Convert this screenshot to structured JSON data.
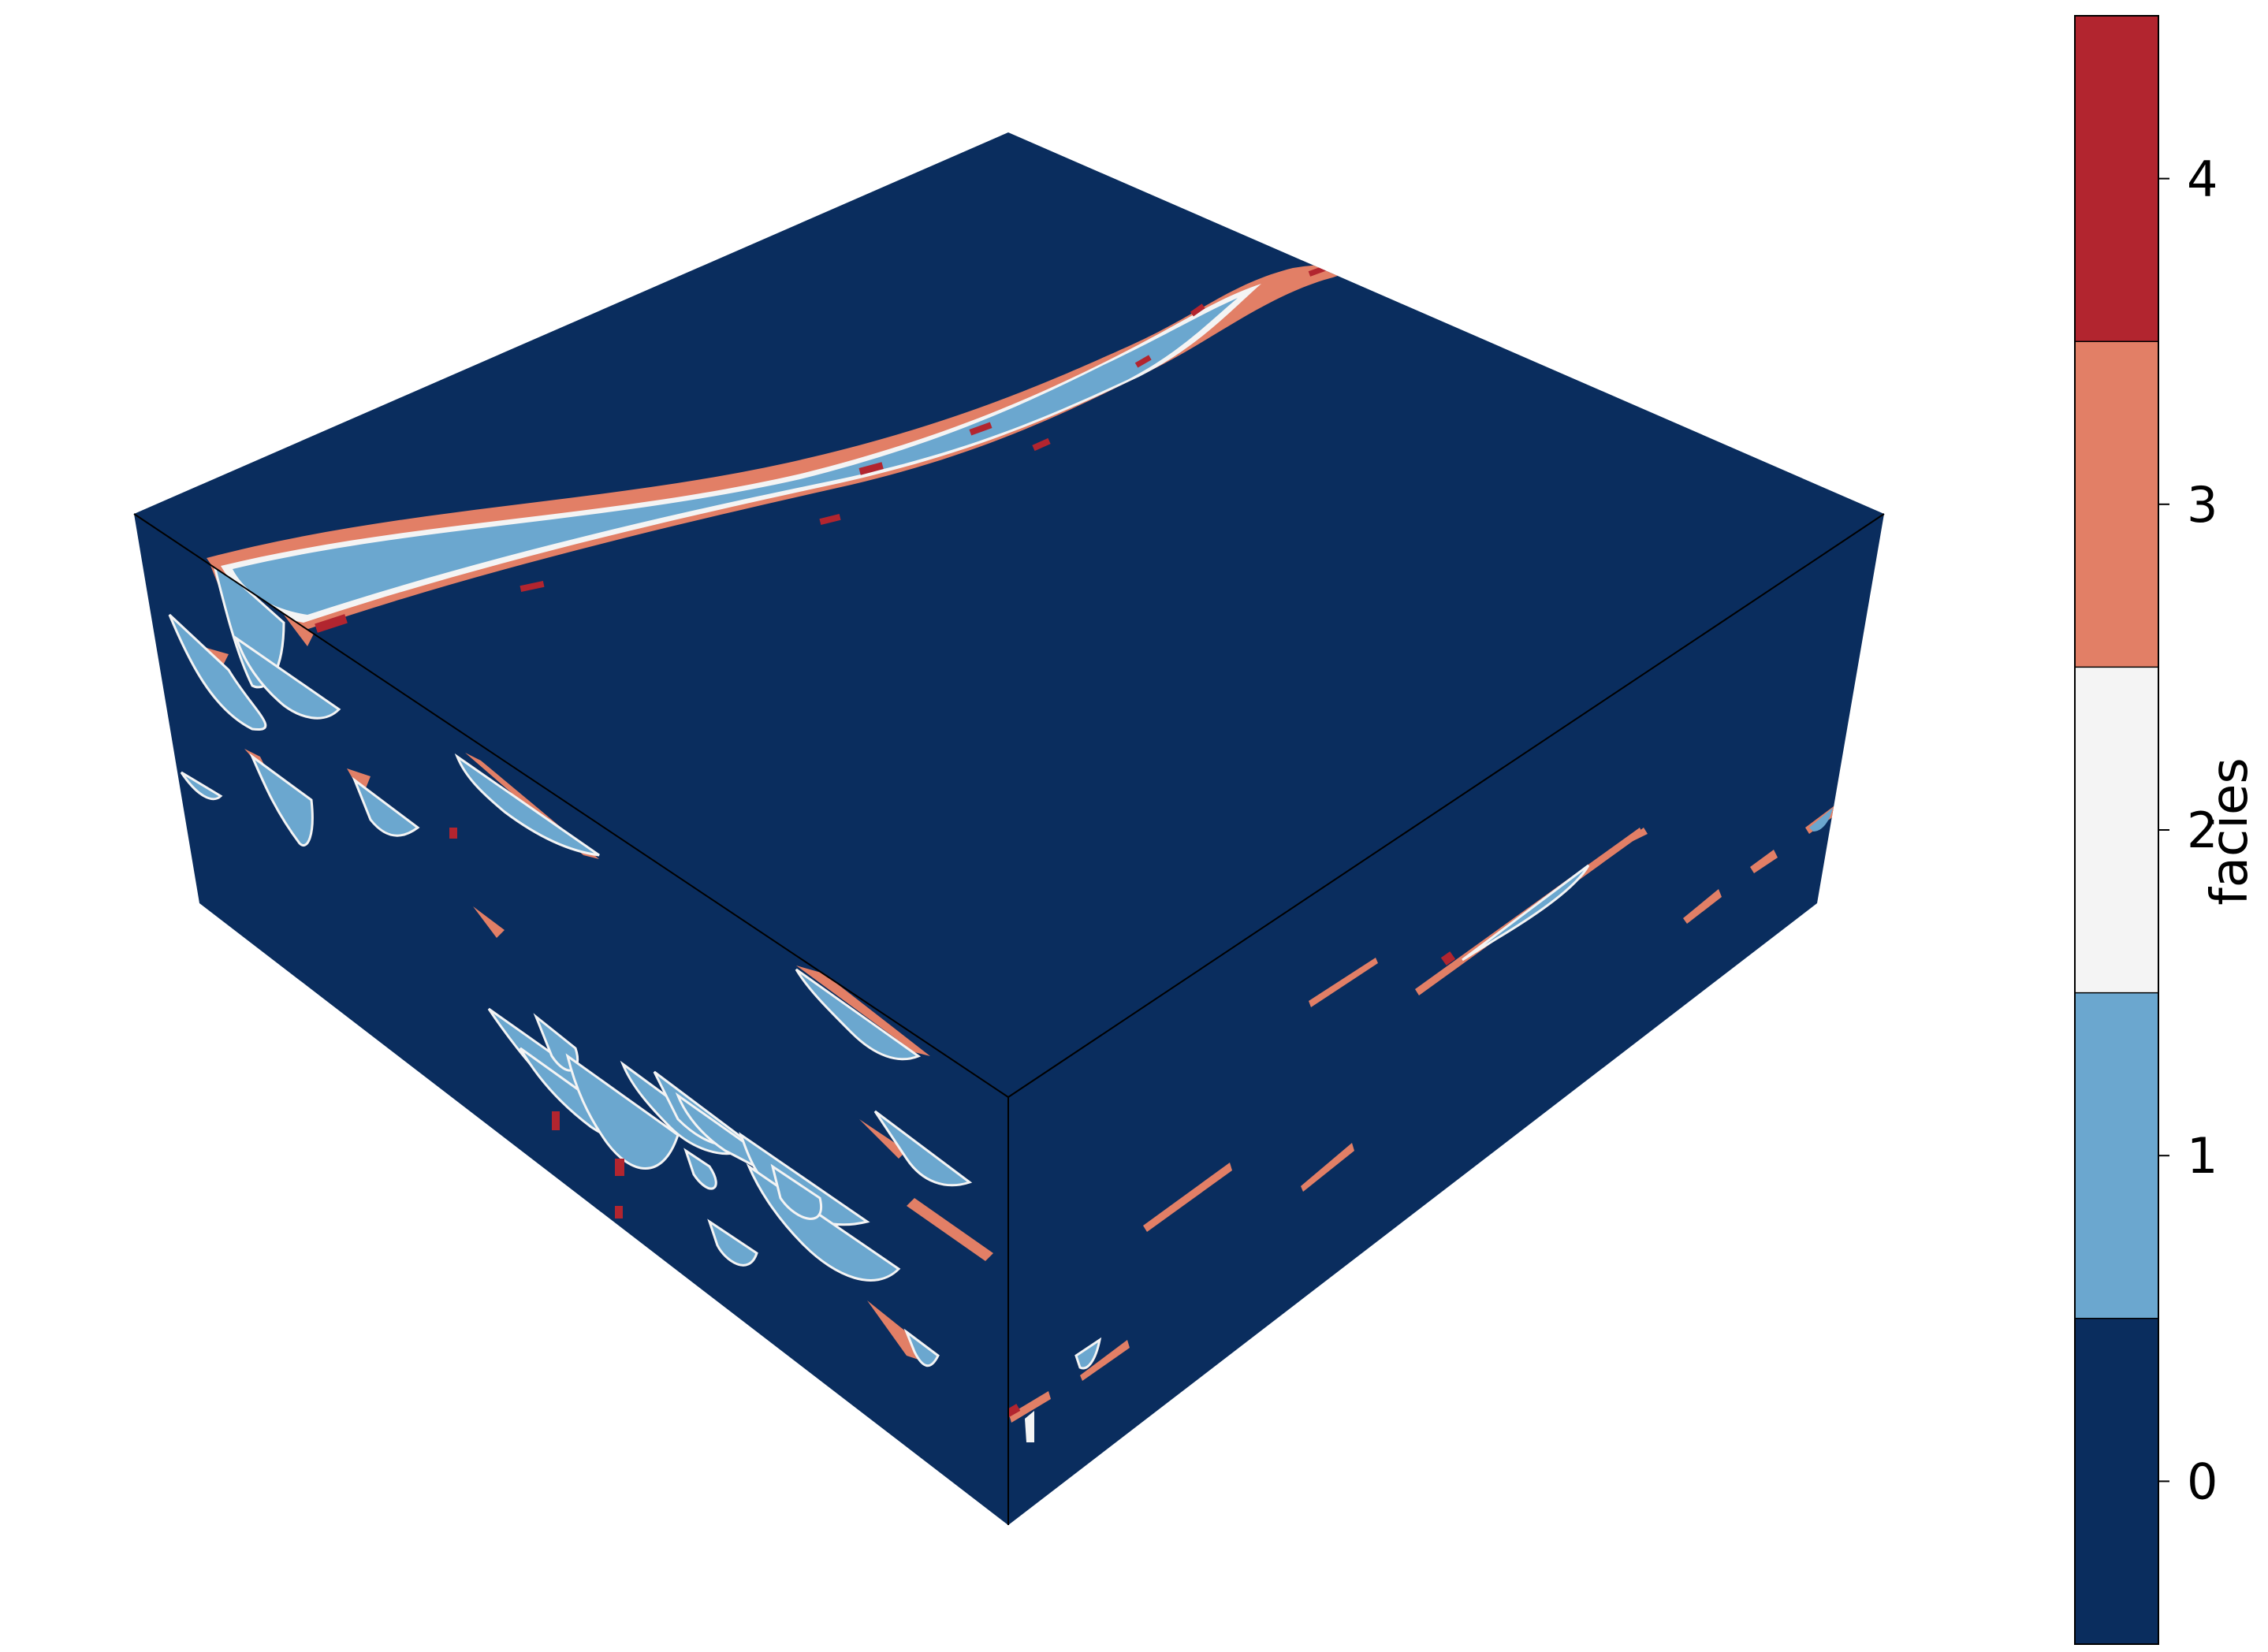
{
  "chart_data": {
    "type": "heatmap",
    "title": "",
    "colorbar": {
      "label": "facies",
      "ticks": [
        {
          "value": 4,
          "label": "4",
          "color": "#b2252f"
        },
        {
          "value": 3,
          "label": "3",
          "color": "#e27f66"
        },
        {
          "value": 2,
          "label": "2",
          "color": "#f4f4f4"
        },
        {
          "value": 1,
          "label": "1",
          "color": "#6ba7cf"
        },
        {
          "value": 0,
          "label": "0",
          "color": "#0a2d5e"
        }
      ],
      "range": [
        -0.5,
        4.5
      ]
    },
    "background_class": 0,
    "faces": [
      "top",
      "left",
      "right"
    ]
  }
}
